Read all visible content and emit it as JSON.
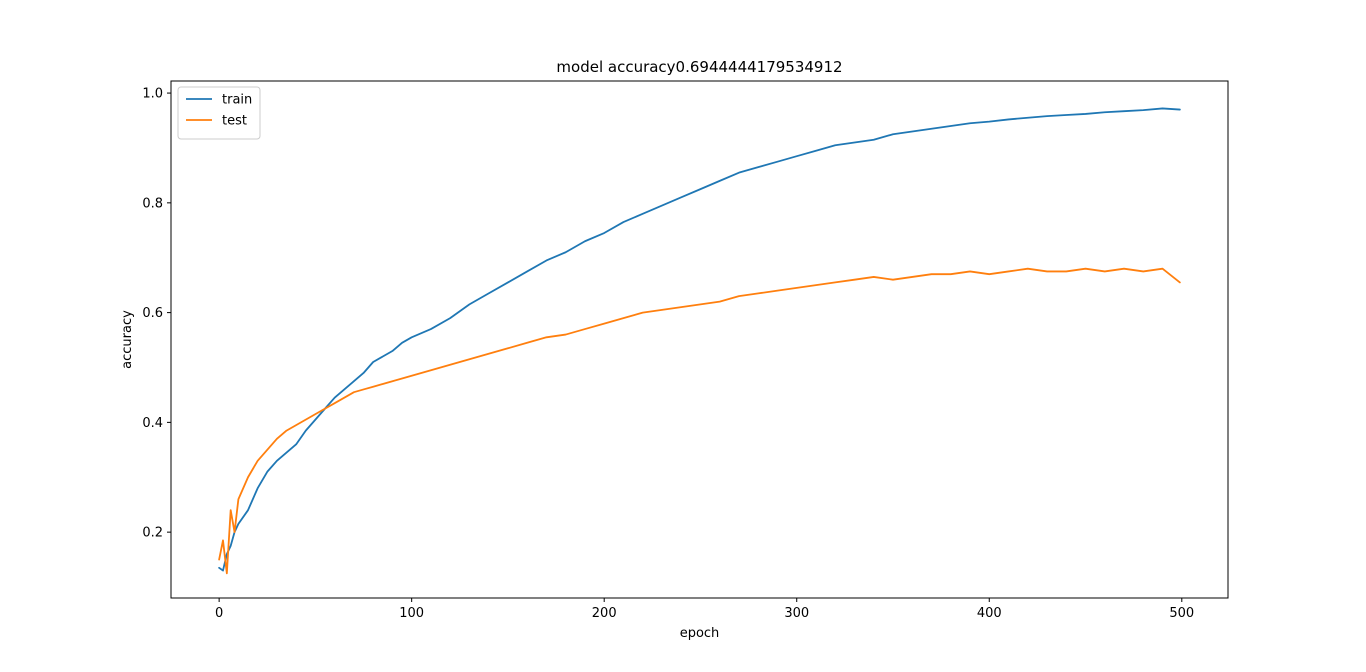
{
  "chart_data": {
    "type": "line",
    "title": "model accuracy0.6944444179534912",
    "xlabel": "epoch",
    "ylabel": "accuracy",
    "xlim": [
      -25,
      524
    ],
    "ylim": [
      0.08,
      1.022
    ],
    "xticks": [
      0,
      100,
      200,
      300,
      400,
      500
    ],
    "yticks": [
      0.2,
      0.4,
      0.6,
      0.8,
      1.0
    ],
    "xtick_labels": [
      "0",
      "100",
      "200",
      "300",
      "400",
      "500"
    ],
    "ytick_labels": [
      "0.2",
      "0.4",
      "0.6",
      "0.8",
      "1.0"
    ],
    "grid": false,
    "legend_position": "upper left",
    "series": [
      {
        "name": "train",
        "color": "#1f77b4",
        "x": [
          0,
          2,
          4,
          6,
          8,
          10,
          15,
          20,
          25,
          30,
          35,
          40,
          45,
          50,
          55,
          60,
          65,
          70,
          75,
          80,
          85,
          90,
          95,
          100,
          110,
          120,
          130,
          140,
          150,
          160,
          170,
          180,
          190,
          200,
          210,
          220,
          230,
          240,
          250,
          260,
          270,
          280,
          290,
          300,
          310,
          320,
          330,
          340,
          350,
          360,
          370,
          380,
          390,
          400,
          410,
          420,
          430,
          440,
          450,
          460,
          470,
          480,
          490,
          499
        ],
        "values": [
          0.135,
          0.13,
          0.16,
          0.175,
          0.2,
          0.215,
          0.24,
          0.28,
          0.31,
          0.33,
          0.345,
          0.36,
          0.385,
          0.405,
          0.425,
          0.445,
          0.46,
          0.475,
          0.49,
          0.51,
          0.52,
          0.53,
          0.545,
          0.555,
          0.57,
          0.59,
          0.615,
          0.635,
          0.655,
          0.675,
          0.695,
          0.71,
          0.73,
          0.745,
          0.765,
          0.78,
          0.795,
          0.81,
          0.825,
          0.84,
          0.855,
          0.865,
          0.875,
          0.885,
          0.895,
          0.905,
          0.91,
          0.915,
          0.925,
          0.93,
          0.935,
          0.94,
          0.945,
          0.948,
          0.952,
          0.955,
          0.958,
          0.96,
          0.962,
          0.965,
          0.967,
          0.969,
          0.972,
          0.97
        ]
      },
      {
        "name": "test",
        "color": "#ff7f0e",
        "x": [
          0,
          2,
          4,
          6,
          8,
          10,
          15,
          20,
          25,
          30,
          35,
          40,
          45,
          50,
          55,
          60,
          65,
          70,
          75,
          80,
          85,
          90,
          95,
          100,
          110,
          120,
          130,
          140,
          150,
          160,
          170,
          180,
          190,
          200,
          210,
          220,
          230,
          240,
          250,
          260,
          270,
          280,
          290,
          300,
          310,
          320,
          330,
          340,
          350,
          360,
          370,
          380,
          390,
          400,
          410,
          420,
          430,
          440,
          450,
          460,
          470,
          480,
          490,
          499
        ],
        "values": [
          0.15,
          0.185,
          0.125,
          0.24,
          0.2,
          0.26,
          0.3,
          0.33,
          0.35,
          0.37,
          0.385,
          0.395,
          0.405,
          0.415,
          0.425,
          0.435,
          0.445,
          0.455,
          0.46,
          0.465,
          0.47,
          0.475,
          0.48,
          0.485,
          0.495,
          0.505,
          0.515,
          0.525,
          0.535,
          0.545,
          0.555,
          0.56,
          0.57,
          0.58,
          0.59,
          0.6,
          0.605,
          0.61,
          0.615,
          0.62,
          0.63,
          0.635,
          0.64,
          0.645,
          0.65,
          0.655,
          0.66,
          0.665,
          0.66,
          0.665,
          0.67,
          0.67,
          0.675,
          0.67,
          0.675,
          0.68,
          0.675,
          0.675,
          0.68,
          0.675,
          0.68,
          0.675,
          0.68,
          0.655
        ]
      }
    ]
  }
}
